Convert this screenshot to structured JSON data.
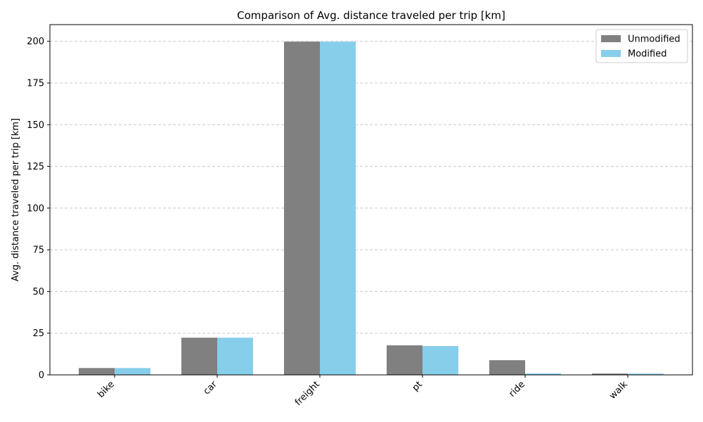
{
  "chart_data": {
    "type": "bar",
    "title": "Comparison of Avg. distance traveled per trip [km]",
    "xlabel": "",
    "ylabel": "Avg. distance traveled per trip [km]",
    "categories": [
      "bike",
      "car",
      "freight",
      "pt",
      "ride",
      "walk"
    ],
    "series": [
      {
        "name": "Unmodified",
        "color": "#808080",
        "values": [
          4.1,
          22.3,
          199.8,
          17.7,
          8.8,
          0.8
        ]
      },
      {
        "name": "Modified",
        "color": "#87CEEB",
        "values": [
          4.1,
          22.3,
          199.8,
          17.3,
          0.9,
          0.8
        ]
      }
    ],
    "ylim": [
      0,
      210
    ],
    "yticks": [
      0,
      25,
      50,
      75,
      100,
      125,
      150,
      175,
      200
    ],
    "grid": "y-dashed",
    "legend": "top-right"
  }
}
